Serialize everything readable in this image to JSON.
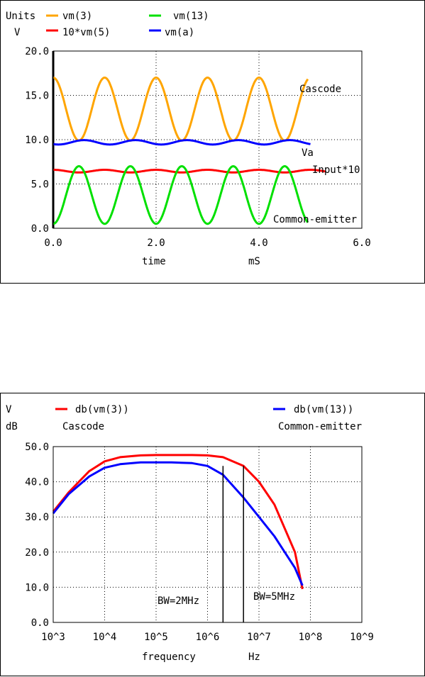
{
  "chart_data": [
    {
      "type": "line",
      "units_label": "Units",
      "y_unit": "V",
      "xlabel": "time",
      "x_unit": "mS",
      "xlim": [
        0,
        6
      ],
      "ylim": [
        0,
        20
      ],
      "xticks": [
        "0.0",
        "2.0",
        "4.0",
        "6.0"
      ],
      "yticks": [
        "0.0",
        "5.0",
        "10.0",
        "15.0",
        "20.0"
      ],
      "grid": true,
      "legend_position": "top",
      "annotations": [
        "Cascode",
        "Va",
        "Input*10",
        "Common-emitter"
      ],
      "series": [
        {
          "name": "vm(3)",
          "color": "#ffa500",
          "kind": "sine",
          "min": 9.9,
          "max": 17.0,
          "period": 1.0,
          "phase": 0.5,
          "x_range": [
            0,
            4.95
          ]
        },
        {
          "name": "10*vm(5)",
          "color": "#ff0000",
          "kind": "sine",
          "min": 6.3,
          "max": 6.6,
          "period": 1.0,
          "phase": 0.5,
          "x_range": [
            0,
            5.3
          ]
        },
        {
          "name": "vm(13)",
          "color": "#00e000",
          "kind": "sine",
          "min": 0.5,
          "max": 7.0,
          "period": 1.0,
          "phase": 0.0,
          "x_range": [
            0,
            4.95
          ]
        },
        {
          "name": "vm(a)",
          "color": "#0000ff",
          "kind": "sine",
          "min": 9.45,
          "max": 9.95,
          "period": 1.0,
          "phase": 0.1,
          "x_range": [
            0,
            5.0
          ]
        }
      ]
    },
    {
      "type": "line",
      "y_unit_1": "V",
      "y_unit_2": "dB",
      "xlabel": "frequency",
      "x_unit": "Hz",
      "xscale": "log",
      "xlim": [
        1000,
        1000000000
      ],
      "ylim": [
        0,
        50
      ],
      "xticks": [
        "10^3",
        "10^4",
        "10^5",
        "10^6",
        "10^7",
        "10^8",
        "10^9"
      ],
      "yticks": [
        "0.0",
        "10.0",
        "20.0",
        "30.0",
        "40.0",
        "50.0"
      ],
      "grid": true,
      "legend_position": "top",
      "annotations": [
        "BW=2MHz",
        "BW=5MHz"
      ],
      "markers": [
        {
          "x": 2000000,
          "y_top": 44.5
        },
        {
          "x": 5000000,
          "y_top": 44.5
        }
      ],
      "series": [
        {
          "name": "db(vm(3))",
          "subtitle": "Cascode",
          "color": "#ff0000",
          "x": [
            1000,
            2000,
            5000,
            10000,
            20000,
            50000,
            100000,
            200000,
            500000,
            1000000,
            2000000,
            5000000,
            10000000,
            20000000,
            50000000,
            70000000
          ],
          "y": [
            31.5,
            37.0,
            43.0,
            45.8,
            47.0,
            47.5,
            47.6,
            47.6,
            47.6,
            47.5,
            47.0,
            44.5,
            40.0,
            33.5,
            20.0,
            9.5
          ]
        },
        {
          "name": "db(vm(13))",
          "subtitle": "Common-emitter",
          "color": "#0000ff",
          "x": [
            1000,
            2000,
            5000,
            10000,
            20000,
            50000,
            100000,
            200000,
            500000,
            1000000,
            2000000,
            5000000,
            10000000,
            20000000,
            50000000,
            70000000
          ],
          "y": [
            31.0,
            36.5,
            41.5,
            44.0,
            45.0,
            45.5,
            45.5,
            45.5,
            45.3,
            44.5,
            42.0,
            35.5,
            30.0,
            24.5,
            15.5,
            10.5
          ]
        }
      ]
    }
  ]
}
